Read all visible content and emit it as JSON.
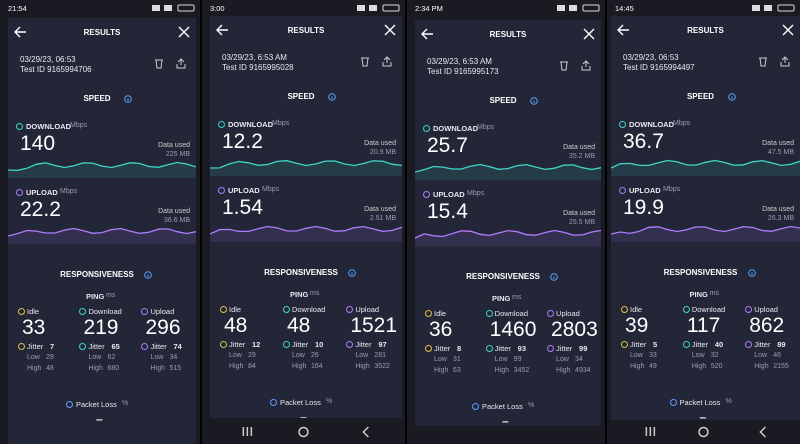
{
  "labels": {
    "results": "RESULTS",
    "speed": "SPEED",
    "download": "DOWNLOAD",
    "upload": "UPLOAD",
    "mbps": "Mbps",
    "data_used": "Data used",
    "responsiveness": "RESPONSIVENESS",
    "ping": "PING",
    "ms": "ms",
    "idle": "Idle",
    "download_ping": "Download",
    "upload_ping": "Upload",
    "jitter": "Jitter",
    "low": "Low",
    "high": "High",
    "packet_loss": "Packet Loss",
    "percent": "%"
  },
  "panels": [
    {
      "status_time": "21:54",
      "date": "03/29/23, 06:53",
      "test_id": "Test ID 9165994706",
      "download": {
        "value": 140,
        "data_used": "225 MB"
      },
      "upload": {
        "value": 22.2,
        "data_used": "36.6 MB"
      },
      "ping": {
        "idle": {
          "value": 33,
          "jitter": 7,
          "low": 29,
          "high": 48
        },
        "download": {
          "value": 219,
          "jitter": 65,
          "low": 62,
          "high": 680
        },
        "upload": {
          "value": 296,
          "jitter": 74,
          "low": 34,
          "high": 515
        }
      },
      "packet_loss": "–"
    },
    {
      "status_time": "3:00",
      "date": "03/29/23, 6:53 AM",
      "test_id": "Test ID 9165995028",
      "download": {
        "value": 12.2,
        "data_used": "20.9 MB"
      },
      "upload": {
        "value": 1.54,
        "data_used": "2.51 MB"
      },
      "ping": {
        "idle": {
          "value": 48,
          "jitter": 12,
          "low": 29,
          "high": 84
        },
        "download": {
          "value": 48,
          "jitter": 10,
          "low": 26,
          "high": 164
        },
        "upload": {
          "value": 1521,
          "jitter": 97,
          "low": 281,
          "high": 3522
        }
      },
      "packet_loss": "–"
    },
    {
      "status_time": "2:34 PM",
      "date": "03/29/23, 6:53 AM",
      "test_id": "Test ID 9165995173",
      "download": {
        "value": 25.7,
        "data_used": "35.2 MB"
      },
      "upload": {
        "value": 15.4,
        "data_used": "25.5 MB"
      },
      "ping": {
        "idle": {
          "value": 36,
          "jitter": 8,
          "low": 31,
          "high": 63
        },
        "download": {
          "value": 1460,
          "jitter": 93,
          "low": 99,
          "high": 3452
        },
        "upload": {
          "value": 2803,
          "jitter": 99,
          "low": 34,
          "high": 4934
        }
      },
      "packet_loss": "–"
    },
    {
      "status_time": "14:45",
      "date": "03/29/23, 06:53",
      "test_id": "Test ID 9165994497",
      "download": {
        "value": 36.7,
        "data_used": "47.5 MB"
      },
      "upload": {
        "value": 19.9,
        "data_used": "26.3 MB"
      },
      "ping": {
        "idle": {
          "value": 39,
          "jitter": 5,
          "low": 33,
          "high": 49
        },
        "download": {
          "value": 117,
          "jitter": 40,
          "low": 32,
          "high": 520
        },
        "upload": {
          "value": 862,
          "jitter": 89,
          "low": 46,
          "high": 2155
        }
      },
      "packet_loss": "–"
    }
  ]
}
